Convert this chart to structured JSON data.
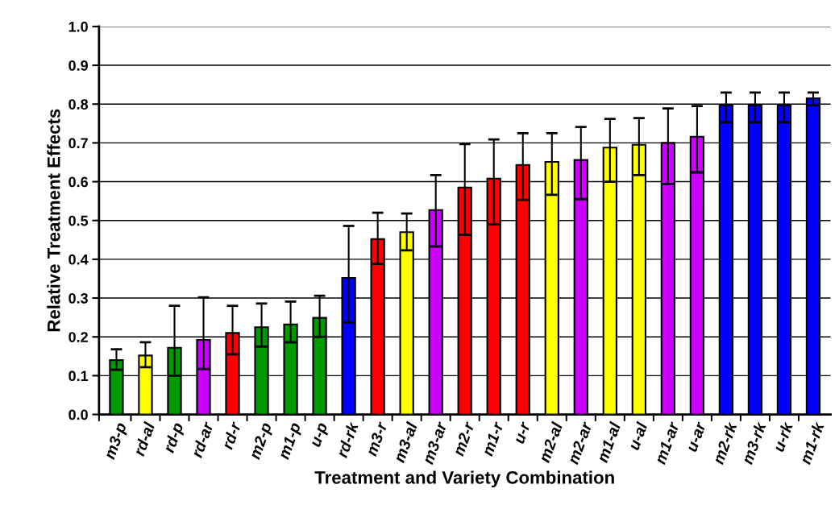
{
  "chart_data": {
    "type": "bar",
    "xlabel": "Treatment and Variety Combination",
    "ylabel": "Relative Treatment Effects",
    "categories": [
      "m3-p",
      "rd-al",
      "rd-p",
      "rd-ar",
      "rd-r",
      "m2-p",
      "m1-p",
      "u-p",
      "rd-rk",
      "m3-r",
      "m3-al",
      "m3-ar",
      "m2-r",
      "m1-r",
      "u-r",
      "m2-al",
      "m2-ar",
      "m1-al",
      "u-al",
      "m1-ar",
      "u-ar",
      "m2-rk",
      "m3-rk",
      "u-rk",
      "m1-rk"
    ],
    "values": [
      0.14,
      0.152,
      0.172,
      0.192,
      0.21,
      0.225,
      0.232,
      0.249,
      0.352,
      0.452,
      0.47,
      0.527,
      0.585,
      0.608,
      0.643,
      0.651,
      0.656,
      0.688,
      0.695,
      0.7,
      0.716,
      0.797,
      0.797,
      0.797,
      0.815
    ],
    "errors": [
      [
        0.115,
        0.168
      ],
      [
        0.122,
        0.186
      ],
      [
        0.1,
        0.28
      ],
      [
        0.117,
        0.302
      ],
      [
        0.155,
        0.28
      ],
      [
        0.175,
        0.286
      ],
      [
        0.186,
        0.291
      ],
      [
        0.2,
        0.306
      ],
      [
        0.237,
        0.486
      ],
      [
        0.388,
        0.52
      ],
      [
        0.423,
        0.518
      ],
      [
        0.433,
        0.617
      ],
      [
        0.463,
        0.697
      ],
      [
        0.49,
        0.709
      ],
      [
        0.553,
        0.725
      ],
      [
        0.566,
        0.725
      ],
      [
        0.555,
        0.741
      ],
      [
        0.6,
        0.762
      ],
      [
        0.617,
        0.764
      ],
      [
        0.594,
        0.789
      ],
      [
        0.624,
        0.795
      ],
      [
        0.753,
        0.83
      ],
      [
        0.753,
        0.83
      ],
      [
        0.753,
        0.83
      ],
      [
        0.797,
        0.83
      ]
    ],
    "colors": [
      "#009900",
      "#ffff00",
      "#009900",
      "#cc00ff",
      "#ff0000",
      "#009900",
      "#009900",
      "#009900",
      "#0000ff",
      "#ff0000",
      "#ffff00",
      "#cc00ff",
      "#ff0000",
      "#ff0000",
      "#ff0000",
      "#ffff00",
      "#cc00ff",
      "#ffff00",
      "#ffff00",
      "#cc00ff",
      "#cc00ff",
      "#0000ff",
      "#0000ff",
      "#0000ff",
      "#0000ff"
    ],
    "ylim": [
      0,
      1
    ],
    "yticks": [
      {
        "value": 0,
        "label": "0.0"
      },
      0.1,
      0.2,
      0.3,
      0.4,
      0.5,
      0.6,
      0.7,
      0.8,
      0.9,
      {
        "value": 1,
        "label": "1.0"
      }
    ],
    "grid": "y",
    "legend": false
  }
}
